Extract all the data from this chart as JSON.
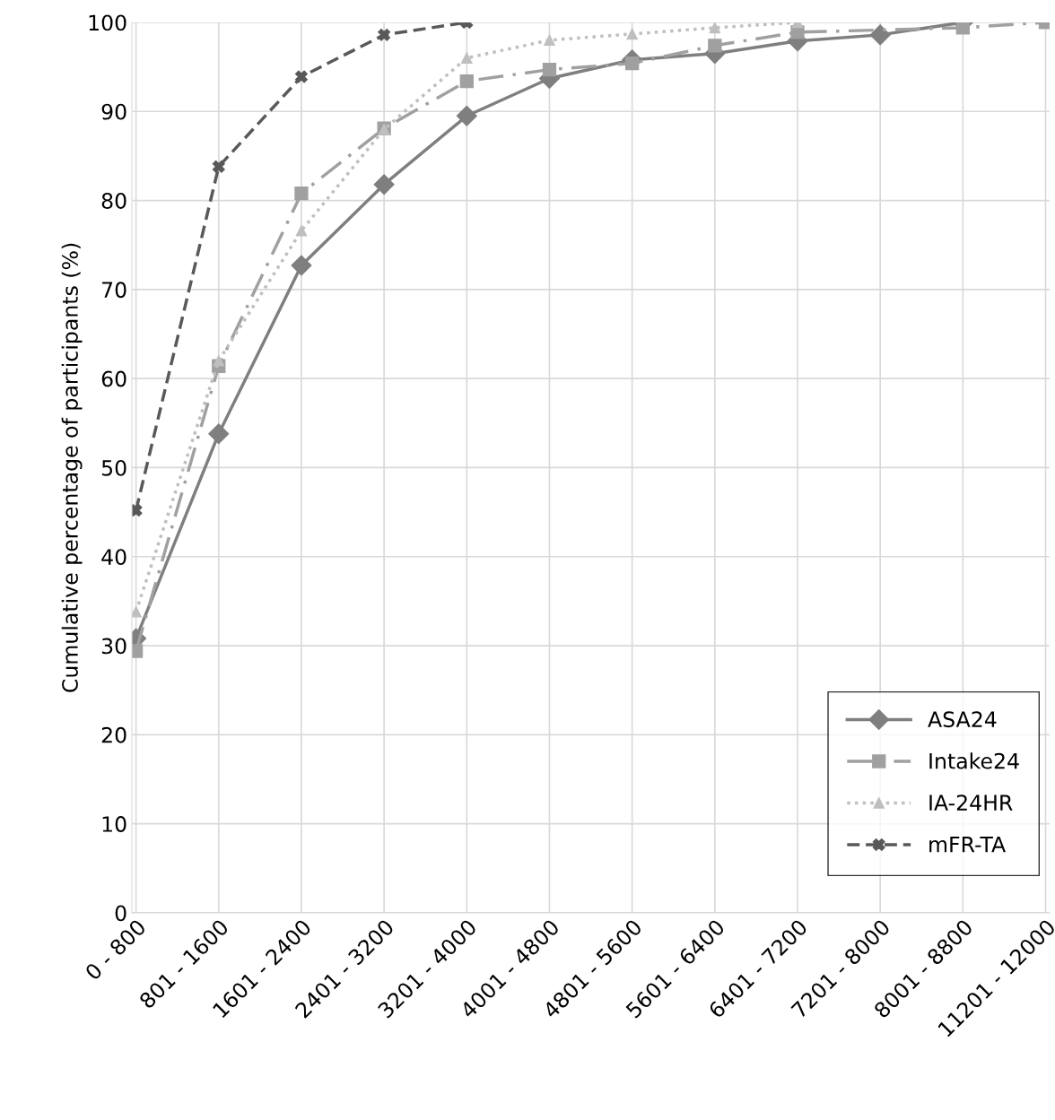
{
  "chart_data": {
    "type": "line",
    "ylabel": "Cumulative percentage of participants (%)",
    "categories": [
      "0 - 800",
      "801 - 1600",
      "1601 - 2400",
      "2401 - 3200",
      "3201 - 4000",
      "4001 - 4800",
      "4801 - 5600",
      "5601 - 6400",
      "6401 - 7200",
      "7201 - 8000",
      "8001 - 8800",
      "11201 - 12000"
    ],
    "series": [
      {
        "name": "ASA24",
        "color": "#7f7f7f",
        "marker": "diamond",
        "line_style": "solid",
        "values": [
          30.8,
          53.8,
          72.7,
          81.8,
          89.5,
          93.7,
          95.8,
          96.5,
          97.9,
          98.6,
          100,
          null
        ]
      },
      {
        "name": "Intake24",
        "color": "#a0a0a0",
        "marker": "square",
        "line_style": "dashdot",
        "values": [
          29.4,
          61.4,
          80.8,
          88.1,
          93.4,
          94.7,
          95.4,
          97.4,
          98.9,
          null,
          99.4,
          100
        ]
      },
      {
        "name": "IA-24HR",
        "color": "#bfbfbf",
        "marker": "triangle",
        "line_style": "dotted",
        "values": [
          33.8,
          62.0,
          76.6,
          88.0,
          96.0,
          98.0,
          98.7,
          99.4,
          100,
          null,
          null,
          null
        ]
      },
      {
        "name": "mFR-TA",
        "color": "#595959",
        "marker": "cross",
        "line_style": "dashed",
        "values": [
          45.2,
          83.8,
          93.9,
          98.6,
          100,
          null,
          null,
          null,
          null,
          null,
          null,
          null
        ]
      }
    ],
    "ylim": [
      0,
      100
    ],
    "yticks": [
      0,
      10,
      20,
      30,
      40,
      50,
      60,
      70,
      80,
      90,
      100
    ],
    "grid": true,
    "legend": "bottom right"
  }
}
